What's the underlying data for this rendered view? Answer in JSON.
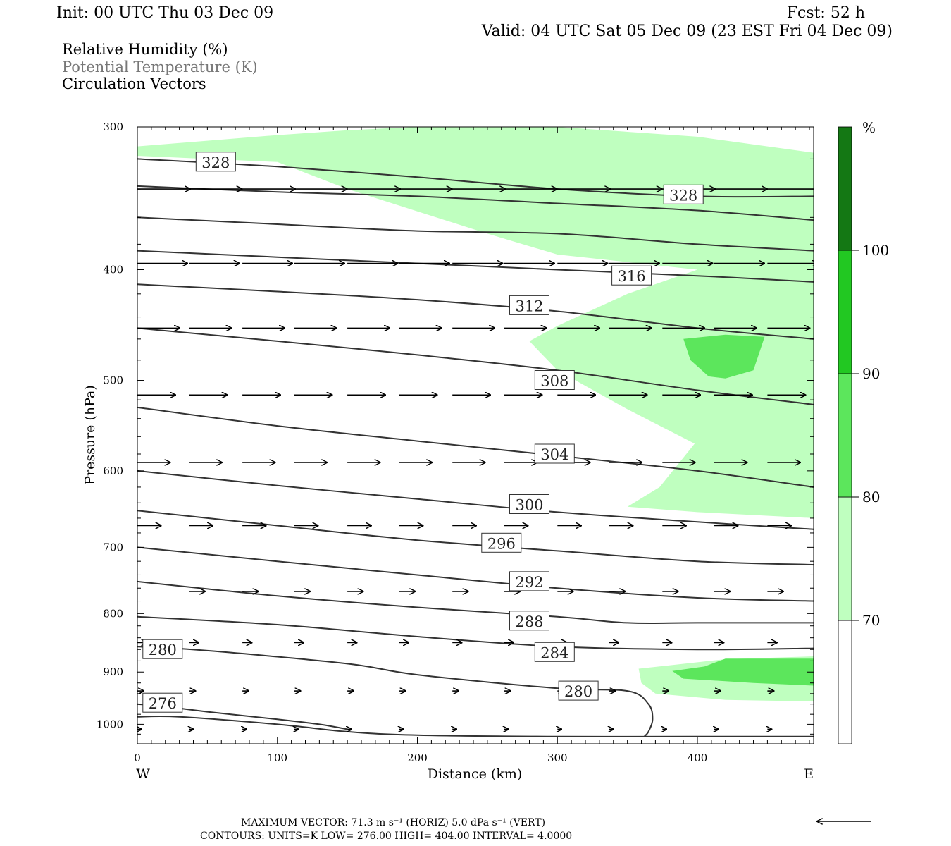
{
  "header": {
    "init": "Init: 00 UTC Thu 03 Dec 09",
    "fcst": "Fcst:   52 h",
    "valid": "Valid: 04 UTC Sat 05 Dec 09 (23 EST Fri 04 Dec 09)"
  },
  "legend": {
    "rh": "Relative Humidity (%)",
    "theta": "Potential Temperature (K)",
    "vectors": "Circulation Vectors"
  },
  "footer": {
    "max_vector": "MAXIMUM VECTOR:  71.3 m s⁻¹ (HORIZ)          5.0 dPa s⁻¹ (VERT)",
    "contours": "CONTOURS:  UNITS=K  LOW=   276.00        HIGH=   404.00        INTERVAL=     4.0000"
  },
  "colors": {
    "rh70": "#bfffbf",
    "rh80": "#5ce65c",
    "rh90": "#22c822",
    "rh100": "#147814",
    "contour": "#333333",
    "theta_legend": "#777777"
  },
  "chart_data": {
    "type": "contour-cross-section",
    "xlabel": "Distance (km)",
    "ylabel": "Pressure (hPa)",
    "xlim": [
      0,
      483
    ],
    "ylim": [
      1040,
      300
    ],
    "y_scale": "log-pressure",
    "x_ticks": [
      0,
      100,
      200,
      300,
      400
    ],
    "y_ticks": [
      300,
      400,
      500,
      600,
      700,
      800,
      900,
      1000
    ],
    "x_end_labels": {
      "left": "W",
      "right": "E"
    },
    "colorbar": {
      "unit": "%",
      "levels": [
        70,
        80,
        90,
        100
      ],
      "labels": [
        "70",
        "80",
        "90",
        "100"
      ]
    },
    "rh_regions": [
      {
        "level": 70,
        "poly": [
          [
            0,
            312
          ],
          [
            100,
            305
          ],
          [
            150,
            302
          ],
          [
            200,
            300
          ],
          [
            300,
            300
          ],
          [
            400,
            306
          ],
          [
            483,
            316
          ],
          [
            483,
            660
          ],
          [
            400,
            652
          ],
          [
            350,
            645
          ],
          [
            373,
            620
          ],
          [
            398,
            568
          ],
          [
            350,
            530
          ],
          [
            300,
            490
          ],
          [
            280,
            462
          ],
          [
            300,
            448
          ],
          [
            350,
            420
          ],
          [
            400,
            400
          ],
          [
            300,
            388
          ],
          [
            250,
            372
          ],
          [
            150,
            340
          ],
          [
            100,
            322
          ],
          [
            0,
            318
          ]
        ]
      },
      {
        "level": 70,
        "poly": [
          [
            358,
            894
          ],
          [
            380,
            888
          ],
          [
            420,
            877
          ],
          [
            483,
            872
          ],
          [
            483,
            955
          ],
          [
            420,
            952
          ],
          [
            370,
            940
          ],
          [
            360,
            920
          ]
        ]
      },
      {
        "level": 80,
        "poly": [
          [
            390,
            460
          ],
          [
            420,
            456
          ],
          [
            448,
            458
          ],
          [
            440,
            490
          ],
          [
            420,
            498
          ],
          [
            408,
            496
          ],
          [
            395,
            480
          ]
        ]
      },
      {
        "level": 80,
        "poly": [
          [
            382,
            898
          ],
          [
            405,
            890
          ],
          [
            420,
            876
          ],
          [
            483,
            876
          ],
          [
            483,
            925
          ],
          [
            440,
            920
          ],
          [
            390,
            912
          ]
        ]
      }
    ],
    "theta_contours": [
      {
        "value": 276,
        "x": [
          0,
          20,
          50,
          100,
          130,
          150
        ],
        "p": [
          960,
          965,
          975,
          990,
          1000,
          1010
        ]
      },
      {
        "value": 276,
        "x": [
          0,
          30,
          100,
          150,
          200,
          300,
          400,
          483
        ],
        "p": [
          985,
          985,
          1000,
          1015,
          1022,
          1025,
          1025,
          1025
        ]
      },
      {
        "value": 280,
        "x": [
          0,
          50,
          150,
          200,
          300,
          350,
          365,
          368,
          365,
          362
        ],
        "p": [
          855,
          862,
          885,
          905,
          930,
          935,
          960,
          990,
          1015,
          1025
        ]
      },
      {
        "value": 284,
        "x": [
          0,
          100,
          200,
          300,
          400,
          483
        ],
        "p": [
          805,
          818,
          838,
          855,
          860,
          858
        ]
      },
      {
        "value": 288,
        "x": [
          0,
          100,
          200,
          300,
          350,
          400,
          483
        ],
        "p": [
          750,
          772,
          790,
          805,
          815,
          815,
          815
        ]
      },
      {
        "value": 292,
        "x": [
          0,
          100,
          200,
          300,
          400,
          483
        ],
        "p": [
          700,
          720,
          740,
          760,
          775,
          780
        ]
      },
      {
        "value": 296,
        "x": [
          0,
          100,
          200,
          300,
          400,
          483
        ],
        "p": [
          650,
          670,
          690,
          705,
          720,
          725
        ]
      },
      {
        "value": 300,
        "x": [
          0,
          100,
          200,
          300,
          400,
          483
        ],
        "p": [
          600,
          618,
          635,
          652,
          665,
          675
        ]
      },
      {
        "value": 304,
        "x": [
          0,
          100,
          200,
          300,
          400,
          483
        ],
        "p": [
          528,
          548,
          565,
          582,
          600,
          620
        ]
      },
      {
        "value": 308,
        "x": [
          0,
          100,
          200,
          300,
          400,
          483
        ],
        "p": [
          450,
          462,
          475,
          490,
          510,
          525
        ]
      },
      {
        "value": 312,
        "x": [
          0,
          100,
          200,
          300,
          400,
          483
        ],
        "p": [
          412,
          418,
          425,
          435,
          450,
          460
        ]
      },
      {
        "value": 316,
        "x": [
          0,
          100,
          200,
          300,
          400,
          483
        ],
        "p": [
          385,
          390,
          395,
          400,
          405,
          410
        ]
      },
      {
        "value": 320,
        "x": [
          0,
          100,
          200,
          300,
          400,
          483
        ],
        "p": [
          360,
          365,
          370,
          372,
          380,
          385
        ]
      },
      {
        "value": 324,
        "x": [
          0,
          100,
          200,
          300,
          400,
          483
        ],
        "p": [
          338,
          342,
          345,
          350,
          355,
          362
        ]
      },
      {
        "value": 328,
        "x": [
          0,
          100,
          200,
          300,
          400,
          483
        ],
        "p": [
          320,
          325,
          332,
          340,
          345,
          345
        ]
      }
    ],
    "contour_labels": [
      {
        "text": "328",
        "x": 56,
        "p": 322
      },
      {
        "text": "328",
        "x": 390,
        "p": 344
      },
      {
        "text": "316",
        "x": 353,
        "p": 405
      },
      {
        "text": "312",
        "x": 280,
        "p": 430
      },
      {
        "text": "308",
        "x": 298,
        "p": 500
      },
      {
        "text": "304",
        "x": 298,
        "p": 580
      },
      {
        "text": "300",
        "x": 280,
        "p": 642
      },
      {
        "text": "296",
        "x": 260,
        "p": 694
      },
      {
        "text": "292",
        "x": 280,
        "p": 750
      },
      {
        "text": "288",
        "x": 280,
        "p": 812
      },
      {
        "text": "284",
        "x": 298,
        "p": 865
      },
      {
        "text": "280",
        "x": 18,
        "p": 860
      },
      {
        "text": "280",
        "x": 315,
        "p": 935
      },
      {
        "text": "276",
        "x": 18,
        "p": 958
      }
    ],
    "vector_rows": [
      {
        "p": 340,
        "length": 1.0,
        "x": [
          0,
          37,
          75,
          112,
          150,
          187,
          225,
          262,
          300,
          337,
          375,
          412,
          450
        ]
      },
      {
        "p": 395,
        "length": 0.95,
        "x": [
          0,
          37,
          75,
          112,
          150,
          187,
          225,
          262,
          300,
          337,
          375,
          412,
          450
        ]
      },
      {
        "p": 450,
        "length": 0.8,
        "x": [
          0,
          37,
          75,
          112,
          150,
          187,
          225,
          262,
          300,
          337,
          375,
          412,
          450
        ]
      },
      {
        "p": 515,
        "length": 0.72,
        "x": [
          0,
          37,
          75,
          112,
          150,
          187,
          225,
          262,
          300,
          337,
          375,
          412,
          450
        ]
      },
      {
        "p": 590,
        "length": 0.62,
        "x": [
          0,
          37,
          75,
          112,
          150,
          187,
          225,
          262,
          300,
          337,
          375,
          412,
          450
        ]
      },
      {
        "p": 670,
        "length": 0.45,
        "x": [
          0,
          37,
          75,
          112,
          150,
          187,
          225,
          262,
          300,
          337,
          375,
          412,
          450
        ]
      },
      {
        "p": 765,
        "length": 0.3,
        "x": [
          37,
          75,
          112,
          150,
          187,
          225,
          262,
          300,
          337,
          375,
          412,
          450
        ]
      },
      {
        "p": 848,
        "length": 0.18,
        "x": [
          0,
          37,
          75,
          112,
          150,
          187,
          225,
          262,
          300,
          337,
          375,
          412,
          450
        ]
      },
      {
        "p": 935,
        "length": 0.12,
        "x": [
          0,
          37,
          75,
          112,
          150,
          187,
          225,
          262,
          300,
          337,
          375,
          412,
          450
        ]
      },
      {
        "p": 1010,
        "length": 0.08,
        "x": [
          0,
          37,
          75,
          112,
          150,
          187,
          225,
          262,
          300,
          337,
          375,
          412,
          450
        ]
      }
    ]
  }
}
